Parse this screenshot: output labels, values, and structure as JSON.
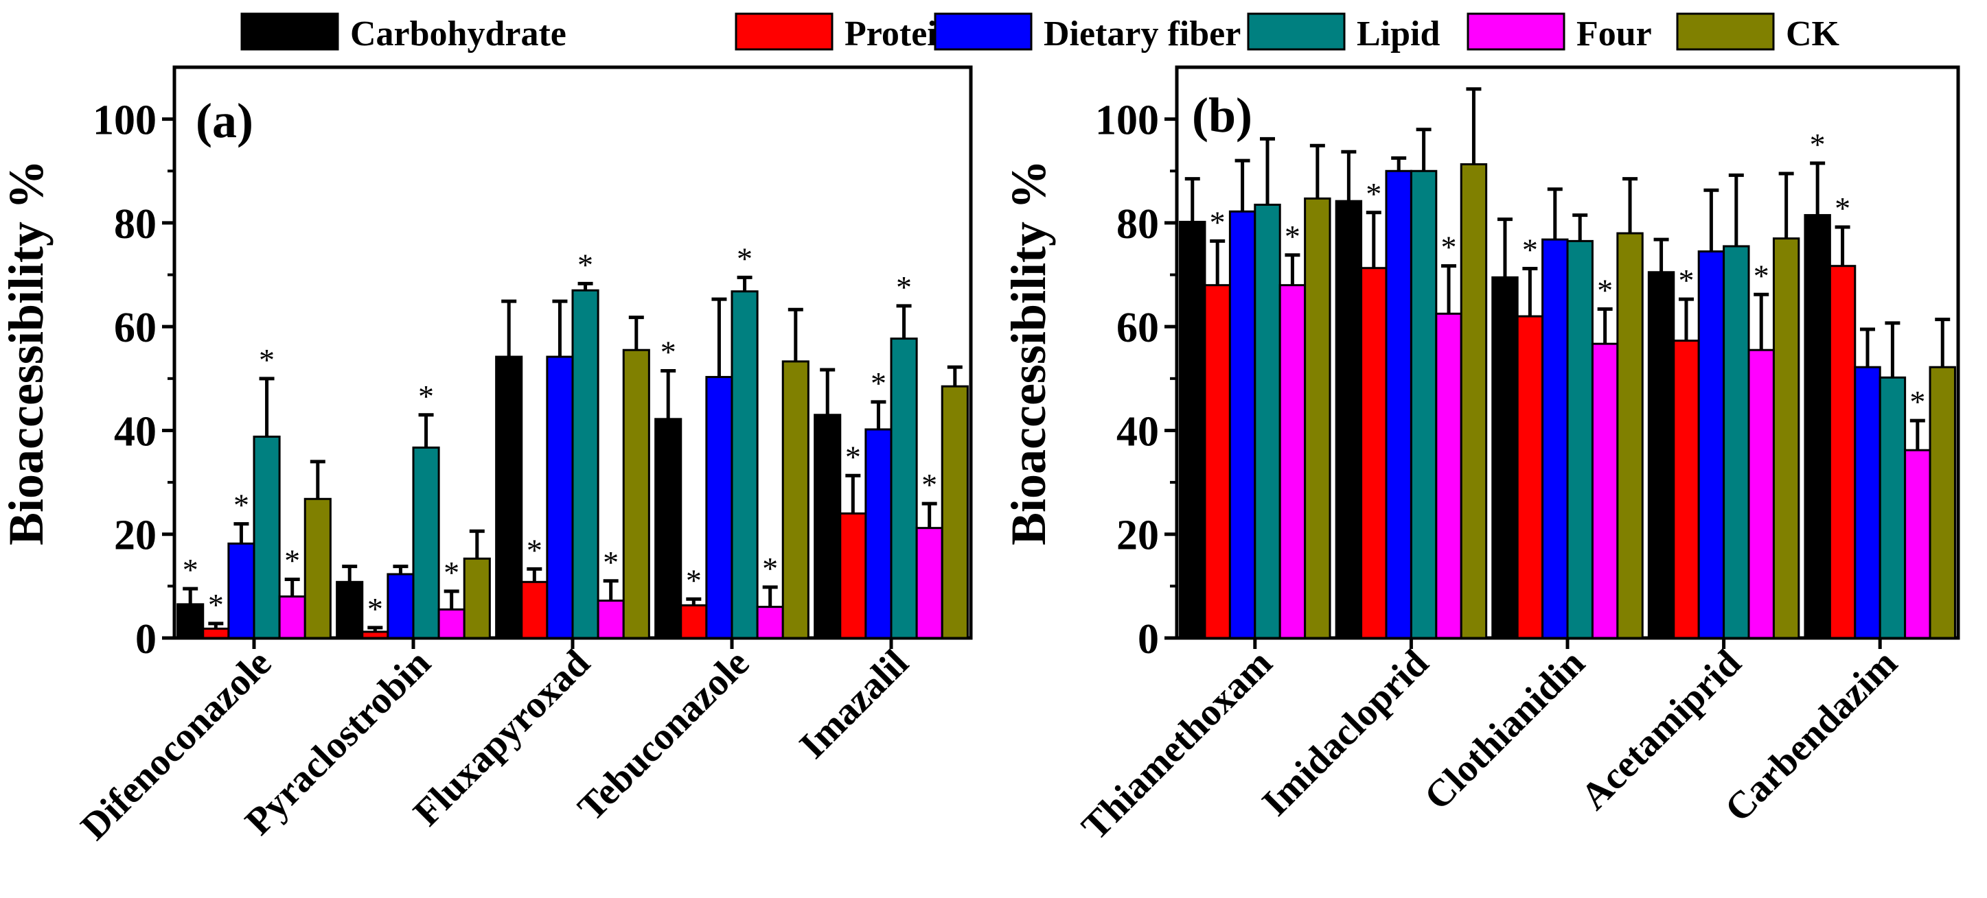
{
  "legend": [
    {
      "name": "Carbohydrate",
      "color": "#000000"
    },
    {
      "name": "Protein",
      "color": "#ff0000"
    },
    {
      "name": "Dietary fiber",
      "color": "#0000ff"
    },
    {
      "name": "Lipid",
      "color": "#008080"
    },
    {
      "name": "Four",
      "color": "#ff00ff"
    },
    {
      "name": "CK",
      "color": "#808000"
    }
  ],
  "chart_data": [
    {
      "type": "bar",
      "panel_label": "(a)",
      "ylabel": "Bioaccessibility %",
      "ylim": [
        0,
        110
      ],
      "yticks": [
        0,
        20,
        40,
        60,
        80,
        100
      ],
      "categories": [
        "Difenoconazole",
        "Pyraclostrobin",
        "Fluxapyroxad",
        "Tebuconazole",
        "Imazalil"
      ],
      "series": [
        {
          "name": "Carbohydrate",
          "values": [
            6.5,
            10.8,
            54.2,
            42.2,
            43.0
          ],
          "errors": [
            3.0,
            3.0,
            10.7,
            9.3,
            8.7
          ],
          "significant": [
            true,
            false,
            false,
            true,
            false
          ]
        },
        {
          "name": "Protein",
          "values": [
            1.8,
            1.2,
            10.8,
            6.3,
            24.0
          ],
          "errors": [
            1.0,
            0.8,
            2.5,
            1.2,
            7.3
          ],
          "significant": [
            true,
            true,
            true,
            true,
            true
          ]
        },
        {
          "name": "Dietary fiber",
          "values": [
            18.2,
            12.3,
            54.2,
            50.3,
            40.2
          ],
          "errors": [
            3.8,
            1.5,
            10.7,
            15.0,
            5.3
          ],
          "significant": [
            true,
            false,
            false,
            false,
            true
          ]
        },
        {
          "name": "Lipid",
          "values": [
            38.8,
            36.7,
            67.0,
            66.8,
            57.7
          ],
          "errors": [
            11.2,
            6.3,
            1.3,
            2.7,
            6.3
          ],
          "significant": [
            true,
            true,
            true,
            true,
            true
          ]
        },
        {
          "name": "Four",
          "values": [
            8.0,
            5.5,
            7.2,
            6.0,
            21.2
          ],
          "errors": [
            3.3,
            3.5,
            3.8,
            3.8,
            4.7
          ],
          "significant": [
            true,
            true,
            true,
            true,
            true
          ]
        },
        {
          "name": "CK",
          "values": [
            26.8,
            15.3,
            55.5,
            53.3,
            48.5
          ],
          "errors": [
            7.2,
            5.3,
            6.3,
            10.0,
            3.7
          ],
          "significant": [
            false,
            false,
            false,
            false,
            false
          ]
        }
      ]
    },
    {
      "type": "bar",
      "panel_label": "(b)",
      "ylabel": "Bioaccessibility %",
      "ylim": [
        0,
        110
      ],
      "yticks": [
        0,
        20,
        40,
        60,
        80,
        100
      ],
      "categories": [
        "Thiamethoxam",
        "Imidacloprid",
        "Clothianidin",
        "Acetamiprid",
        "Carbendazim"
      ],
      "series": [
        {
          "name": "Carbohydrate",
          "values": [
            80.2,
            84.2,
            69.5,
            70.5,
            81.5
          ],
          "errors": [
            8.3,
            9.5,
            11.2,
            6.3,
            10.0
          ],
          "significant": [
            false,
            false,
            false,
            false,
            true
          ]
        },
        {
          "name": "Protein",
          "values": [
            68.0,
            71.3,
            62.0,
            57.3,
            71.7
          ],
          "errors": [
            8.5,
            10.7,
            9.2,
            8.0,
            7.5
          ],
          "significant": [
            true,
            true,
            true,
            true,
            true
          ]
        },
        {
          "name": "Dietary fiber",
          "values": [
            82.2,
            90.0,
            76.8,
            74.5,
            52.2
          ],
          "errors": [
            9.8,
            2.5,
            9.7,
            11.8,
            7.3
          ],
          "significant": [
            false,
            false,
            false,
            false,
            false
          ]
        },
        {
          "name": "Lipid",
          "values": [
            83.5,
            90.0,
            76.5,
            75.5,
            50.2
          ],
          "errors": [
            12.7,
            8.0,
            5.0,
            13.7,
            10.5
          ],
          "significant": [
            false,
            false,
            false,
            false,
            false
          ]
        },
        {
          "name": "Four",
          "values": [
            68.0,
            62.5,
            56.7,
            55.5,
            36.2
          ],
          "errors": [
            5.8,
            9.2,
            6.7,
            10.7,
            5.7
          ],
          "significant": [
            true,
            true,
            true,
            true,
            true
          ]
        },
        {
          "name": "CK",
          "values": [
            84.7,
            91.3,
            78.0,
            77.0,
            52.2
          ],
          "errors": [
            10.2,
            14.5,
            10.5,
            12.5,
            9.2
          ],
          "significant": [
            false,
            false,
            false,
            false,
            false
          ]
        }
      ]
    }
  ]
}
